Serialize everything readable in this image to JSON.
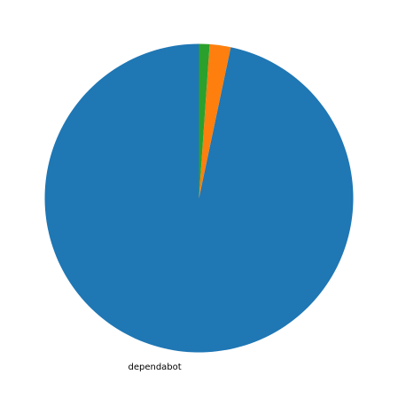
{
  "chart_data": {
    "type": "pie",
    "slices": [
      {
        "label": "dependabot",
        "value": 96.7,
        "color": "#1f77b4"
      },
      {
        "label": "",
        "value": 2.2,
        "color": "#ff7f0e"
      },
      {
        "label": "",
        "value": 1.1,
        "color": "#2ca02c"
      }
    ],
    "start_angle_deg": 90,
    "direction": "counterclockwise",
    "legend": "none",
    "title": ""
  }
}
